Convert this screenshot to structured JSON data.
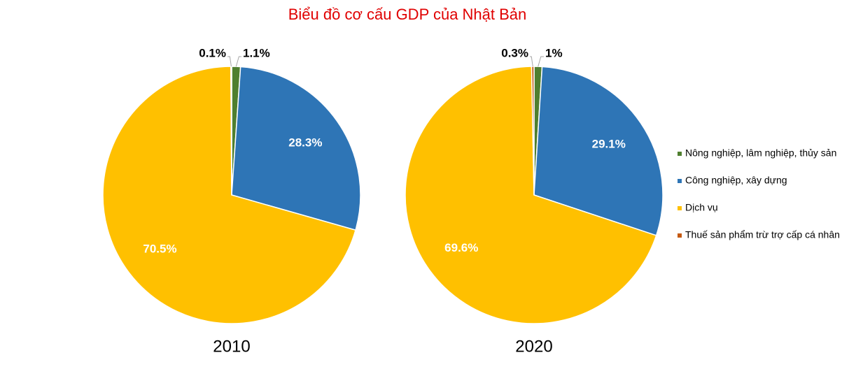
{
  "title": "Biểu đồ cơ cấu GDP của Nhật Bản",
  "chart_data": [
    {
      "type": "pie",
      "title": "2010",
      "categories": [
        "Nông nghiệp, lâm nghiệp, thủy sản",
        "Công nghiệp, xây dựng",
        "Dịch vụ",
        "Thuế sản phẩm trừ trợ cấp cá nhân"
      ],
      "values": [
        1.1,
        28.3,
        70.5,
        0.1
      ],
      "value_labels": [
        "1.1%",
        "28.3%",
        "70.5%",
        "0.1%"
      ],
      "colors": [
        "#4f7f2f",
        "#2e75b6",
        "#ffc000",
        "#c55a11"
      ]
    },
    {
      "type": "pie",
      "title": "2020",
      "categories": [
        "Nông nghiệp, lâm nghiệp, thủy sản",
        "Công nghiệp, xây dựng",
        "Dịch vụ",
        "Thuế sản phẩm trừ trợ cấp cá nhân"
      ],
      "values": [
        1,
        29.1,
        69.6,
        0.3
      ],
      "value_labels": [
        "1%",
        "29.1%",
        "69.6%",
        "0.3%"
      ],
      "colors": [
        "#4f7f2f",
        "#2e75b6",
        "#ffc000",
        "#c55a11"
      ]
    }
  ]
}
